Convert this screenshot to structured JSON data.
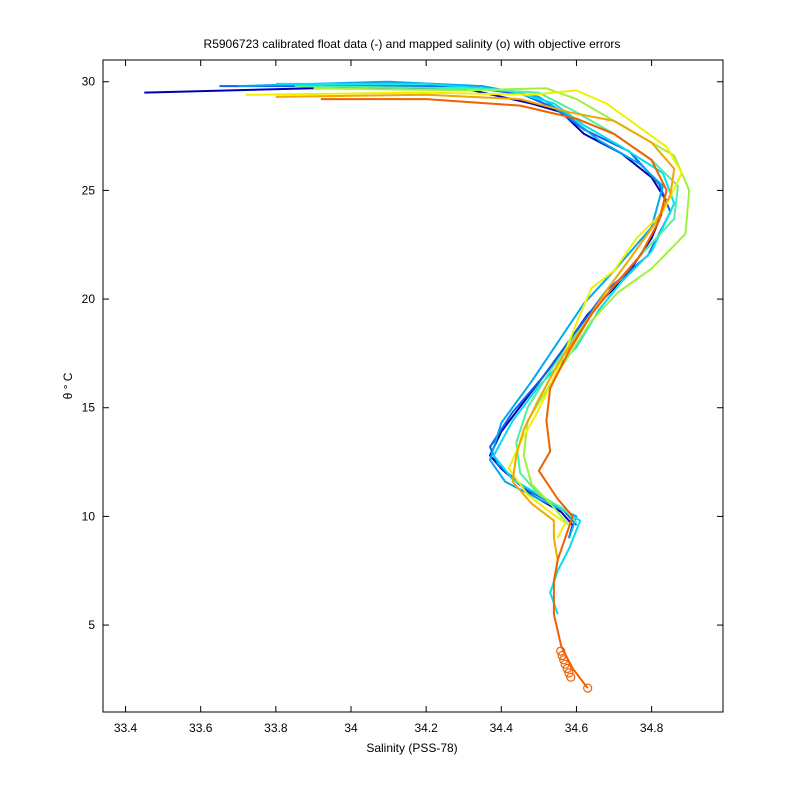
{
  "chart_data": {
    "type": "line",
    "title": "R5906723 calibrated float data (-) and mapped salinity (o) with objective errors",
    "xlabel": "Salinity (PSS-78)",
    "ylabel": "θ ° C",
    "xlim": [
      33.34,
      34.99
    ],
    "ylim": [
      1.0,
      31.0
    ],
    "xticks": [
      33.4,
      33.6,
      33.8,
      34.0,
      34.2,
      34.4,
      34.6,
      34.8
    ],
    "xtick_labels": [
      "33.4",
      "33.6",
      "33.8",
      "34",
      "34.2",
      "34.4",
      "34.6",
      "34.8"
    ],
    "yticks": [
      5,
      10,
      15,
      20,
      25,
      30
    ],
    "ytick_labels": [
      "5",
      "10",
      "15",
      "20",
      "25",
      "30"
    ],
    "grid": false,
    "series": [
      {
        "color": "#0000b0",
        "points": [
          [
            33.45,
            29.5
          ],
          [
            33.9,
            29.7
          ],
          [
            34.3,
            29.7
          ],
          [
            34.48,
            29.0
          ],
          [
            34.56,
            28.6
          ],
          [
            34.62,
            27.6
          ],
          [
            34.72,
            26.7
          ],
          [
            34.8,
            25.6
          ],
          [
            34.84,
            24.5
          ],
          [
            34.8,
            22.8
          ],
          [
            34.73,
            21.0
          ],
          [
            34.63,
            19.3
          ],
          [
            34.55,
            17.3
          ],
          [
            34.47,
            15.5
          ],
          [
            34.4,
            13.9
          ],
          [
            34.37,
            12.8
          ],
          [
            34.4,
            12.2
          ],
          [
            34.48,
            11.0
          ],
          [
            34.56,
            10.2
          ],
          [
            34.59,
            9.6
          ],
          [
            34.58,
            9.0
          ]
        ]
      },
      {
        "color": "#1060f0",
        "points": [
          [
            33.65,
            29.8
          ],
          [
            34.0,
            29.8
          ],
          [
            34.3,
            29.8
          ],
          [
            34.46,
            29.4
          ],
          [
            34.54,
            28.8
          ],
          [
            34.62,
            27.8
          ],
          [
            34.74,
            26.8
          ],
          [
            34.82,
            25.3
          ],
          [
            34.85,
            24.0
          ],
          [
            34.79,
            22.0
          ],
          [
            34.68,
            20.4
          ],
          [
            34.59,
            18.3
          ],
          [
            34.51,
            16.4
          ],
          [
            34.43,
            14.8
          ],
          [
            34.37,
            13.2
          ],
          [
            34.39,
            12.4
          ],
          [
            34.47,
            11.2
          ],
          [
            34.56,
            10.4
          ],
          [
            34.6,
            9.6
          ]
        ]
      },
      {
        "color": "#00a8f0",
        "points": [
          [
            33.7,
            29.8
          ],
          [
            34.1,
            30.0
          ],
          [
            34.35,
            29.8
          ],
          [
            34.5,
            29.3
          ],
          [
            34.58,
            28.4
          ],
          [
            34.66,
            27.3
          ],
          [
            34.77,
            26.2
          ],
          [
            34.83,
            25.2
          ],
          [
            34.8,
            23.3
          ],
          [
            34.7,
            21.3
          ],
          [
            34.62,
            19.8
          ],
          [
            34.55,
            18.0
          ],
          [
            34.48,
            16.2
          ],
          [
            34.4,
            14.3
          ],
          [
            34.37,
            12.6
          ],
          [
            34.41,
            11.6
          ],
          [
            34.5,
            10.8
          ],
          [
            34.6,
            10.0
          ],
          [
            34.58,
            9.0
          ]
        ]
      },
      {
        "color": "#00e0f0",
        "points": [
          [
            33.8,
            29.9
          ],
          [
            34.2,
            29.9
          ],
          [
            34.42,
            29.6
          ],
          [
            34.54,
            29.0
          ],
          [
            34.62,
            28.0
          ],
          [
            34.72,
            27.0
          ],
          [
            34.83,
            25.8
          ],
          [
            34.86,
            24.4
          ],
          [
            34.8,
            22.2
          ],
          [
            34.72,
            20.8
          ],
          [
            34.66,
            19.5
          ],
          [
            34.6,
            17.8
          ],
          [
            34.5,
            16.0
          ],
          [
            34.43,
            14.4
          ],
          [
            34.38,
            12.8
          ],
          [
            34.43,
            11.7
          ],
          [
            34.52,
            10.8
          ],
          [
            34.61,
            9.8
          ],
          [
            34.58,
            8.5
          ],
          [
            34.55,
            7.5
          ],
          [
            34.53,
            6.5
          ],
          [
            34.55,
            5.5
          ]
        ]
      },
      {
        "color": "#50f0a0",
        "points": [
          [
            33.85,
            29.8
          ],
          [
            34.3,
            29.7
          ],
          [
            34.5,
            29.5
          ],
          [
            34.6,
            28.6
          ],
          [
            34.7,
            27.6
          ],
          [
            34.8,
            26.4
          ],
          [
            34.87,
            25.2
          ],
          [
            34.86,
            23.7
          ],
          [
            34.77,
            22.0
          ],
          [
            34.68,
            20.2
          ],
          [
            34.6,
            18.4
          ],
          [
            34.53,
            16.7
          ],
          [
            34.47,
            15.0
          ],
          [
            34.44,
            13.4
          ],
          [
            34.45,
            12.0
          ],
          [
            34.5,
            11.0
          ],
          [
            34.57,
            10.3
          ],
          [
            34.6,
            9.7
          ]
        ]
      },
      {
        "color": "#a0f040",
        "points": [
          [
            33.9,
            29.7
          ],
          [
            34.3,
            29.6
          ],
          [
            34.52,
            29.7
          ],
          [
            34.6,
            29.2
          ],
          [
            34.68,
            28.4
          ],
          [
            34.77,
            27.5
          ],
          [
            34.86,
            26.6
          ],
          [
            34.9,
            25.0
          ],
          [
            34.89,
            23.0
          ],
          [
            34.8,
            21.4
          ],
          [
            34.71,
            20.3
          ],
          [
            34.64,
            19.0
          ],
          [
            34.58,
            17.4
          ],
          [
            34.52,
            15.8
          ],
          [
            34.47,
            14.4
          ],
          [
            34.46,
            12.8
          ],
          [
            34.48,
            11.5
          ],
          [
            34.53,
            10.6
          ],
          [
            34.58,
            9.6
          ]
        ]
      },
      {
        "color": "#f0f000",
        "points": [
          [
            33.72,
            29.4
          ],
          [
            34.2,
            29.5
          ],
          [
            34.48,
            29.4
          ],
          [
            34.6,
            29.6
          ],
          [
            34.68,
            29.0
          ],
          [
            34.76,
            28.0
          ],
          [
            34.84,
            27.0
          ],
          [
            34.88,
            25.8
          ],
          [
            34.83,
            24.0
          ],
          [
            34.76,
            22.8
          ],
          [
            34.7,
            21.3
          ],
          [
            34.64,
            20.5
          ],
          [
            34.61,
            19.3
          ],
          [
            34.57,
            17.6
          ],
          [
            34.53,
            16.0
          ],
          [
            34.49,
            14.6
          ],
          [
            34.45,
            13.4
          ],
          [
            34.42,
            12.2
          ],
          [
            34.47,
            11.0
          ],
          [
            34.53,
            10.2
          ],
          [
            34.57,
            9.7
          ],
          [
            34.55,
            9.0
          ]
        ]
      },
      {
        "color": "#f0a800",
        "points": [
          [
            33.8,
            29.3
          ],
          [
            34.2,
            29.4
          ],
          [
            34.45,
            29.2
          ],
          [
            34.58,
            28.6
          ],
          [
            34.7,
            28.2
          ],
          [
            34.8,
            27.2
          ],
          [
            34.86,
            26.0
          ],
          [
            34.85,
            24.8
          ],
          [
            34.81,
            23.5
          ],
          [
            34.74,
            21.8
          ],
          [
            34.68,
            20.4
          ],
          [
            34.62,
            18.8
          ],
          [
            34.55,
            17.0
          ],
          [
            34.5,
            15.4
          ],
          [
            34.46,
            14.0
          ],
          [
            34.44,
            12.8
          ],
          [
            34.43,
            11.6
          ],
          [
            34.48,
            10.6
          ],
          [
            34.54,
            9.8
          ],
          [
            34.54,
            9.0
          ],
          [
            34.55,
            8.0
          ],
          [
            34.54,
            7.0
          ]
        ]
      },
      {
        "color": "#f06000",
        "points": [
          [
            33.92,
            29.2
          ],
          [
            34.2,
            29.2
          ],
          [
            34.45,
            28.9
          ],
          [
            34.6,
            28.3
          ],
          [
            34.7,
            27.6
          ],
          [
            34.8,
            26.4
          ],
          [
            34.84,
            25.0
          ],
          [
            34.82,
            23.6
          ],
          [
            34.77,
            22.0
          ],
          [
            34.7,
            20.6
          ],
          [
            34.64,
            19.3
          ],
          [
            34.58,
            17.6
          ],
          [
            34.53,
            15.9
          ],
          [
            34.52,
            14.4
          ],
          [
            34.53,
            13.0
          ],
          [
            34.5,
            12.1
          ],
          [
            34.55,
            10.8
          ],
          [
            34.59,
            10.0
          ],
          [
            34.57,
            9.0
          ],
          [
            34.55,
            8.0
          ],
          [
            34.54,
            7.0
          ],
          [
            34.54,
            5.5
          ],
          [
            34.56,
            4.0
          ],
          [
            34.59,
            3.0
          ],
          [
            34.63,
            2.1
          ]
        ]
      }
    ],
    "mapped_salinity": {
      "marker": "circle",
      "color": "#f06000",
      "points": [
        [
          34.558,
          3.8
        ],
        [
          34.562,
          3.6
        ],
        [
          34.566,
          3.4
        ],
        [
          34.57,
          3.2
        ],
        [
          34.575,
          3.0
        ],
        [
          34.58,
          2.8
        ],
        [
          34.585,
          2.6
        ],
        [
          34.63,
          2.1
        ]
      ]
    }
  }
}
